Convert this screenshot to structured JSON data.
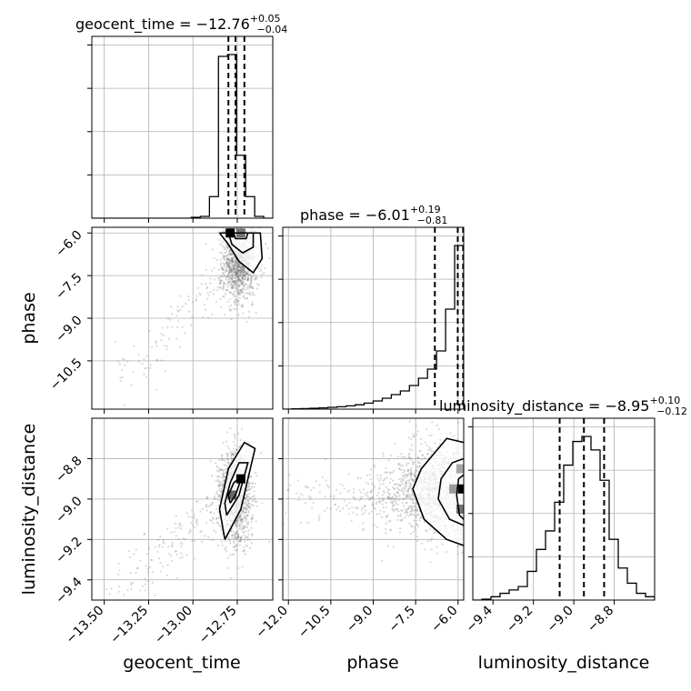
{
  "chart_data": {
    "type": "corner",
    "parameters": [
      {
        "name": "geocent_time",
        "axis_label": "geocent_time",
        "title": "geocent_time = −12.76",
        "title_plus": "+0.05",
        "title_minus": "−0.04",
        "range": [
          -13.57,
          -12.55
        ],
        "quantiles": [
          -12.8,
          -12.76,
          -12.71
        ],
        "ticks": [
          -13.5,
          -13.25,
          -13.0,
          -12.75
        ],
        "tick_labels": [
          "−13.50",
          "−13.25",
          "−13.00",
          "−12.75"
        ],
        "histogram": {
          "edges": [
            -13.57,
            -13.519,
            -13.468,
            -13.417,
            -13.366,
            -13.315,
            -13.264,
            -13.213,
            -13.162,
            -13.111,
            -13.06,
            -13.009,
            -12.958,
            -12.907,
            -12.856,
            -12.805,
            -12.754,
            -12.703,
            -12.652,
            -12.601,
            -12.55
          ],
          "density": [
            0,
            0,
            0,
            0,
            0,
            0,
            0,
            0,
            0,
            0,
            0,
            0.005,
            0.01,
            0.12,
            0.9,
            0.91,
            0.35,
            0.12,
            0.01,
            0
          ]
        }
      },
      {
        "name": "phase",
        "axis_label": "phase",
        "title": "phase = −6.01",
        "title_plus": "+0.19",
        "title_minus": "−0.81",
        "range": [
          -12.2,
          -5.8
        ],
        "quantiles": [
          -6.82,
          -6.01,
          -5.82
        ],
        "ticks": [
          -12.0,
          -10.5,
          -9.0,
          -7.5,
          -6.0
        ],
        "tick_labels": [
          "−12.0",
          "−10.5",
          "−9.0",
          "−7.5",
          "−6.0"
        ],
        "histogram": {
          "edges": [
            -12.2,
            -11.88,
            -11.56,
            -11.24,
            -10.92,
            -10.6,
            -10.28,
            -9.96,
            -9.64,
            -9.32,
            -9.0,
            -8.68,
            -8.36,
            -8.04,
            -7.72,
            -7.4,
            -7.08,
            -6.76,
            -6.44,
            -6.12,
            -5.8
          ],
          "density": [
            0,
            0.002,
            0.003,
            0.005,
            0.007,
            0.01,
            0.013,
            0.018,
            0.024,
            0.033,
            0.045,
            0.06,
            0.08,
            0.1,
            0.13,
            0.17,
            0.22,
            0.32,
            0.55,
            0.9
          ]
        }
      },
      {
        "name": "luminosity_distance",
        "axis_label": "luminosity_distance",
        "title": "luminosity_distance = −8.95",
        "title_plus": "+0.10",
        "title_minus": "−0.12",
        "range": [
          -9.5,
          -8.6
        ],
        "quantiles": [
          -9.07,
          -8.95,
          -8.85
        ],
        "ticks": [
          -9.4,
          -9.2,
          -9.0,
          -8.8
        ],
        "tick_labels": [
          "−9.4",
          "−9.2",
          "−9.0",
          "−8.8"
        ],
        "histogram": {
          "edges": [
            -9.5,
            -9.455,
            -9.41,
            -9.365,
            -9.32,
            -9.275,
            -9.23,
            -9.185,
            -9.14,
            -9.095,
            -9.05,
            -9.005,
            -8.96,
            -8.915,
            -8.87,
            -8.825,
            -8.78,
            -8.735,
            -8.69,
            -8.645,
            -8.6
          ],
          "density": [
            0,
            0.005,
            0.02,
            0.04,
            0.06,
            0.08,
            0.17,
            0.3,
            0.41,
            0.58,
            0.8,
            0.94,
            0.97,
            0.89,
            0.71,
            0.36,
            0.19,
            0.1,
            0.04,
            0.02
          ]
        }
      }
    ],
    "joint": [
      {
        "x": "geocent_time",
        "y": "phase",
        "y_ticks": [
          -6.0,
          -7.5,
          -9.0,
          -10.5
        ],
        "y_tick_labels": [
          "−6.0",
          "−7.5",
          "−9.0",
          "−10.5"
        ],
        "y_range": [
          -12.2,
          -5.8
        ],
        "samples": {
          "count": 1200,
          "center": [
            -12.74,
            -7.0
          ],
          "trail_to": [
            -13.45,
            -11.5
          ],
          "spread": [
            0.05,
            0.7
          ]
        },
        "contours": [
          [
            [
              -12.85,
              -6.0
            ],
            [
              -12.62,
              -6.0
            ],
            [
              -12.61,
              -6.9
            ],
            [
              -12.66,
              -7.4
            ],
            [
              -12.74,
              -7.0
            ],
            [
              -12.8,
              -6.4
            ],
            [
              -12.85,
              -6.0
            ]
          ],
          [
            [
              -12.8,
              -6.0
            ],
            [
              -12.66,
              -6.0
            ],
            [
              -12.66,
              -6.5
            ],
            [
              -12.72,
              -6.7
            ],
            [
              -12.78,
              -6.4
            ],
            [
              -12.8,
              -6.0
            ]
          ],
          [
            [
              -12.77,
              -6.0
            ],
            [
              -12.69,
              -6.0
            ],
            [
              -12.7,
              -6.2
            ],
            [
              -12.76,
              -6.2
            ],
            [
              -12.77,
              -6.0
            ]
          ]
        ],
        "density_cells": [
          {
            "x": -12.79,
            "y": -6.0,
            "level": 1.0
          },
          {
            "x": -12.73,
            "y": -6.0,
            "level": 0.55
          }
        ]
      },
      {
        "x": "geocent_time",
        "y": "luminosity_distance",
        "y_ticks": [
          -8.8,
          -9.0,
          -9.2,
          -9.4
        ],
        "y_tick_labels": [
          "−8.8",
          "−9.0",
          "−9.2",
          "−9.4"
        ],
        "y_range": [
          -9.5,
          -8.6
        ],
        "samples": {
          "count": 1500,
          "center": [
            -12.76,
            -8.98
          ],
          "trail_to": [
            -13.45,
            -9.45
          ],
          "spread": [
            0.045,
            0.12
          ]
        },
        "contours": [
          [
            [
              -12.82,
              -9.2
            ],
            [
              -12.73,
              -9.05
            ],
            [
              -12.65,
              -8.75
            ],
            [
              -12.71,
              -8.72
            ],
            [
              -12.8,
              -8.85
            ],
            [
              -12.85,
              -9.05
            ],
            [
              -12.82,
              -9.2
            ]
          ],
          [
            [
              -12.81,
              -9.08
            ],
            [
              -12.74,
              -8.98
            ],
            [
              -12.69,
              -8.82
            ],
            [
              -12.74,
              -8.82
            ],
            [
              -12.79,
              -8.92
            ],
            [
              -12.82,
              -9.02
            ],
            [
              -12.81,
              -9.08
            ]
          ],
          [
            [
              -12.79,
              -9.02
            ],
            [
              -12.76,
              -8.98
            ],
            [
              -12.72,
              -8.88
            ],
            [
              -12.77,
              -8.92
            ],
            [
              -12.8,
              -8.98
            ],
            [
              -12.79,
              -9.02
            ]
          ]
        ],
        "density_cells": [
          {
            "x": -12.73,
            "y": -8.9,
            "level": 1.0
          },
          {
            "x": -12.78,
            "y": -8.98,
            "level": 0.6
          }
        ]
      },
      {
        "x": "phase",
        "y": "luminosity_distance",
        "y_range": [
          -9.5,
          -8.6
        ],
        "samples": {
          "count": 2500,
          "center": [
            -6.1,
            -8.96
          ],
          "trail_to": [
            -11.5,
            -9.0
          ],
          "spread": [
            1.2,
            0.11
          ]
        },
        "contours": [
          [
            [
              -5.8,
              -8.72
            ],
            [
              -6.4,
              -8.7
            ],
            [
              -7.3,
              -8.85
            ],
            [
              -7.6,
              -8.95
            ],
            [
              -7.2,
              -9.1
            ],
            [
              -6.4,
              -9.2
            ],
            [
              -5.8,
              -9.23
            ]
          ],
          [
            [
              -5.8,
              -8.8
            ],
            [
              -6.2,
              -8.82
            ],
            [
              -6.6,
              -8.9
            ],
            [
              -6.7,
              -9.0
            ],
            [
              -6.3,
              -9.1
            ],
            [
              -5.8,
              -9.13
            ]
          ],
          [
            [
              -5.8,
              -8.88
            ],
            [
              -5.98,
              -8.9
            ],
            [
              -6.05,
              -8.98
            ],
            [
              -5.95,
              -9.08
            ],
            [
              -5.8,
              -9.1
            ]
          ]
        ],
        "density_cells": [
          {
            "x": -5.9,
            "y": -8.95,
            "level": 1.0
          },
          {
            "x": -5.9,
            "y": -9.05,
            "level": 0.55
          },
          {
            "x": -5.9,
            "y": -8.85,
            "level": 0.35
          },
          {
            "x": -6.15,
            "y": -8.95,
            "level": 0.4
          }
        ]
      }
    ],
    "grid": true
  }
}
